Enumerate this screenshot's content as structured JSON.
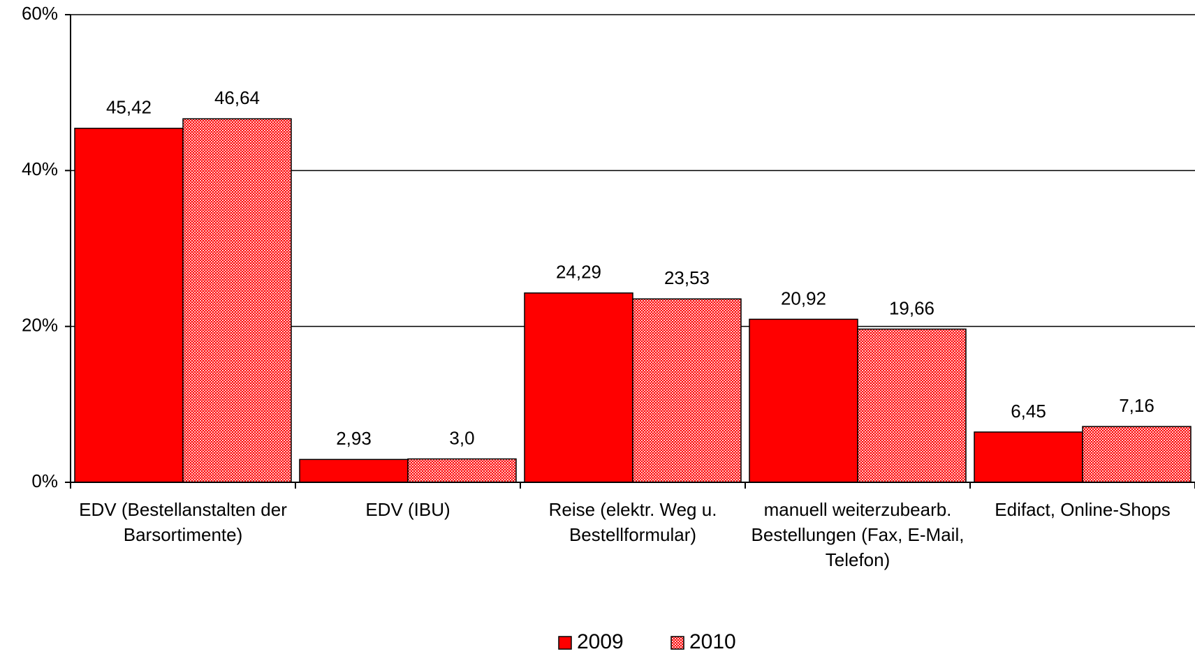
{
  "chart_data": {
    "type": "bar",
    "categories": [
      "EDV (Bestellanstalten der Barsortimente)",
      "EDV (IBU)",
      "Reise (elektr. Weg u. Bestellformular)",
      "manuell weiterzubearb. Bestellungen (Fax, E-Mail, Telefon)",
      "Edifact, Online-Shops"
    ],
    "series": [
      {
        "name": "2009",
        "color": "#ff0000",
        "values": [
          45.42,
          2.93,
          24.29,
          20.92,
          6.45
        ],
        "value_labels": [
          "45,42",
          "2,93",
          "24,29",
          "20,92",
          "6,45"
        ]
      },
      {
        "name": "2010",
        "color": "#ff0000",
        "pattern": "dotted",
        "values": [
          46.64,
          3.0,
          23.53,
          19.66,
          7.16
        ],
        "value_labels": [
          "46,64",
          "3,0",
          "23,53",
          "19,66",
          "7,16"
        ]
      }
    ],
    "ylim": [
      0,
      60
    ],
    "yticks": [
      {
        "value": 0,
        "label": "0%"
      },
      {
        "value": 20,
        "label": "20%"
      },
      {
        "value": 40,
        "label": "40%"
      },
      {
        "value": 60,
        "label": "60%"
      }
    ],
    "grid": true,
    "legend": "bottom"
  }
}
